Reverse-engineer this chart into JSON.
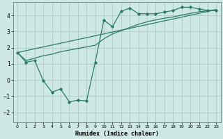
{
  "xlabel": "Humidex (Indice chaleur)",
  "ylabel": "",
  "background_color": "#cde8e5",
  "grid_color": "#b0c8c5",
  "line_color": "#2a7a6a",
  "xlim": [
    -0.5,
    23.5
  ],
  "ylim": [
    -2.6,
    4.8
  ],
  "yticks": [
    -2,
    -1,
    0,
    1,
    2,
    3,
    4
  ],
  "xticks": [
    0,
    1,
    2,
    3,
    4,
    5,
    6,
    7,
    8,
    9,
    10,
    11,
    12,
    13,
    14,
    15,
    16,
    17,
    18,
    19,
    20,
    21,
    22,
    23
  ],
  "series1_x": [
    0,
    1,
    2,
    3,
    4,
    5,
    6,
    7,
    8,
    9,
    10,
    11,
    12,
    13,
    14,
    15,
    16,
    17,
    18,
    19,
    20,
    21,
    22,
    23
  ],
  "series1_y": [
    1.7,
    1.1,
    1.2,
    -0.05,
    -0.75,
    -0.55,
    -1.35,
    -1.25,
    -1.3,
    1.1,
    3.7,
    3.3,
    4.25,
    4.45,
    4.1,
    4.1,
    4.1,
    4.2,
    4.3,
    4.5,
    4.5,
    4.4,
    4.3,
    4.3
  ],
  "series2_x": [
    0,
    1,
    2,
    3,
    4,
    5,
    6,
    7,
    8,
    9,
    10,
    11,
    12,
    13,
    14,
    15,
    16,
    17,
    18,
    19,
    20,
    21,
    22,
    23
  ],
  "series2_y": [
    1.7,
    1.2,
    1.35,
    1.5,
    1.6,
    1.75,
    1.85,
    1.95,
    2.05,
    2.15,
    2.55,
    2.85,
    3.05,
    3.25,
    3.45,
    3.6,
    3.72,
    3.82,
    3.9,
    4.02,
    4.12,
    4.22,
    4.28,
    4.35
  ],
  "series3_x": [
    0,
    23
  ],
  "series3_y": [
    1.7,
    4.35
  ]
}
